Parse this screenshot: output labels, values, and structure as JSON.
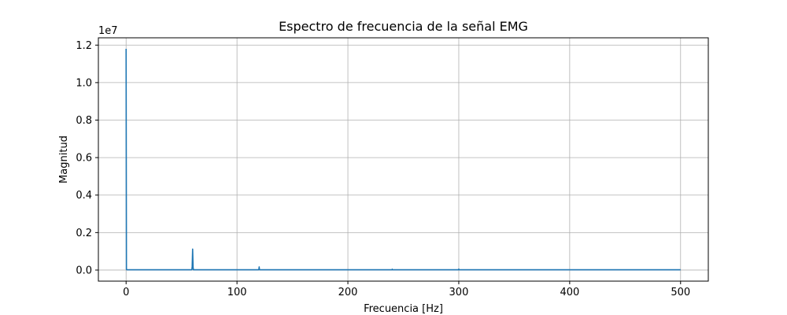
{
  "chart_data": {
    "type": "line",
    "title": "Espectro de frecuencia de la señal EMG",
    "xlabel": "Frecuencia [Hz]",
    "ylabel": "Magnitud",
    "y_offset_label": "1e7",
    "xlim": [
      -25,
      525
    ],
    "ylim": [
      -590000,
      12390000
    ],
    "x_ticks": [
      0,
      100,
      200,
      300,
      400,
      500
    ],
    "x_tick_labels": [
      "0",
      "100",
      "200",
      "300",
      "400",
      "500"
    ],
    "y_ticks": [
      0,
      2000000,
      4000000,
      6000000,
      8000000,
      10000000,
      12000000
    ],
    "y_tick_labels": [
      "0.0",
      "0.2",
      "0.4",
      "0.6",
      "0.8",
      "1.0",
      "1.2"
    ],
    "grid": true,
    "series": [
      {
        "color": "#1f77b4",
        "x": [
          0,
          0.3,
          0.6,
          59.3,
          59.6,
          60.0,
          60.4,
          60.7,
          119.5,
          119.8,
          120.0,
          120.2,
          120.5,
          180,
          239.8,
          240.0,
          240.2,
          299.8,
          300.0,
          300.2,
          420,
          500
        ],
        "y": [
          11800000,
          40000,
          15000,
          15000,
          200000,
          1120000,
          150000,
          15000,
          15000,
          60000,
          170000,
          50000,
          15000,
          15000,
          15000,
          45000,
          15000,
          15000,
          55000,
          15000,
          15000,
          15000
        ]
      }
    ]
  }
}
